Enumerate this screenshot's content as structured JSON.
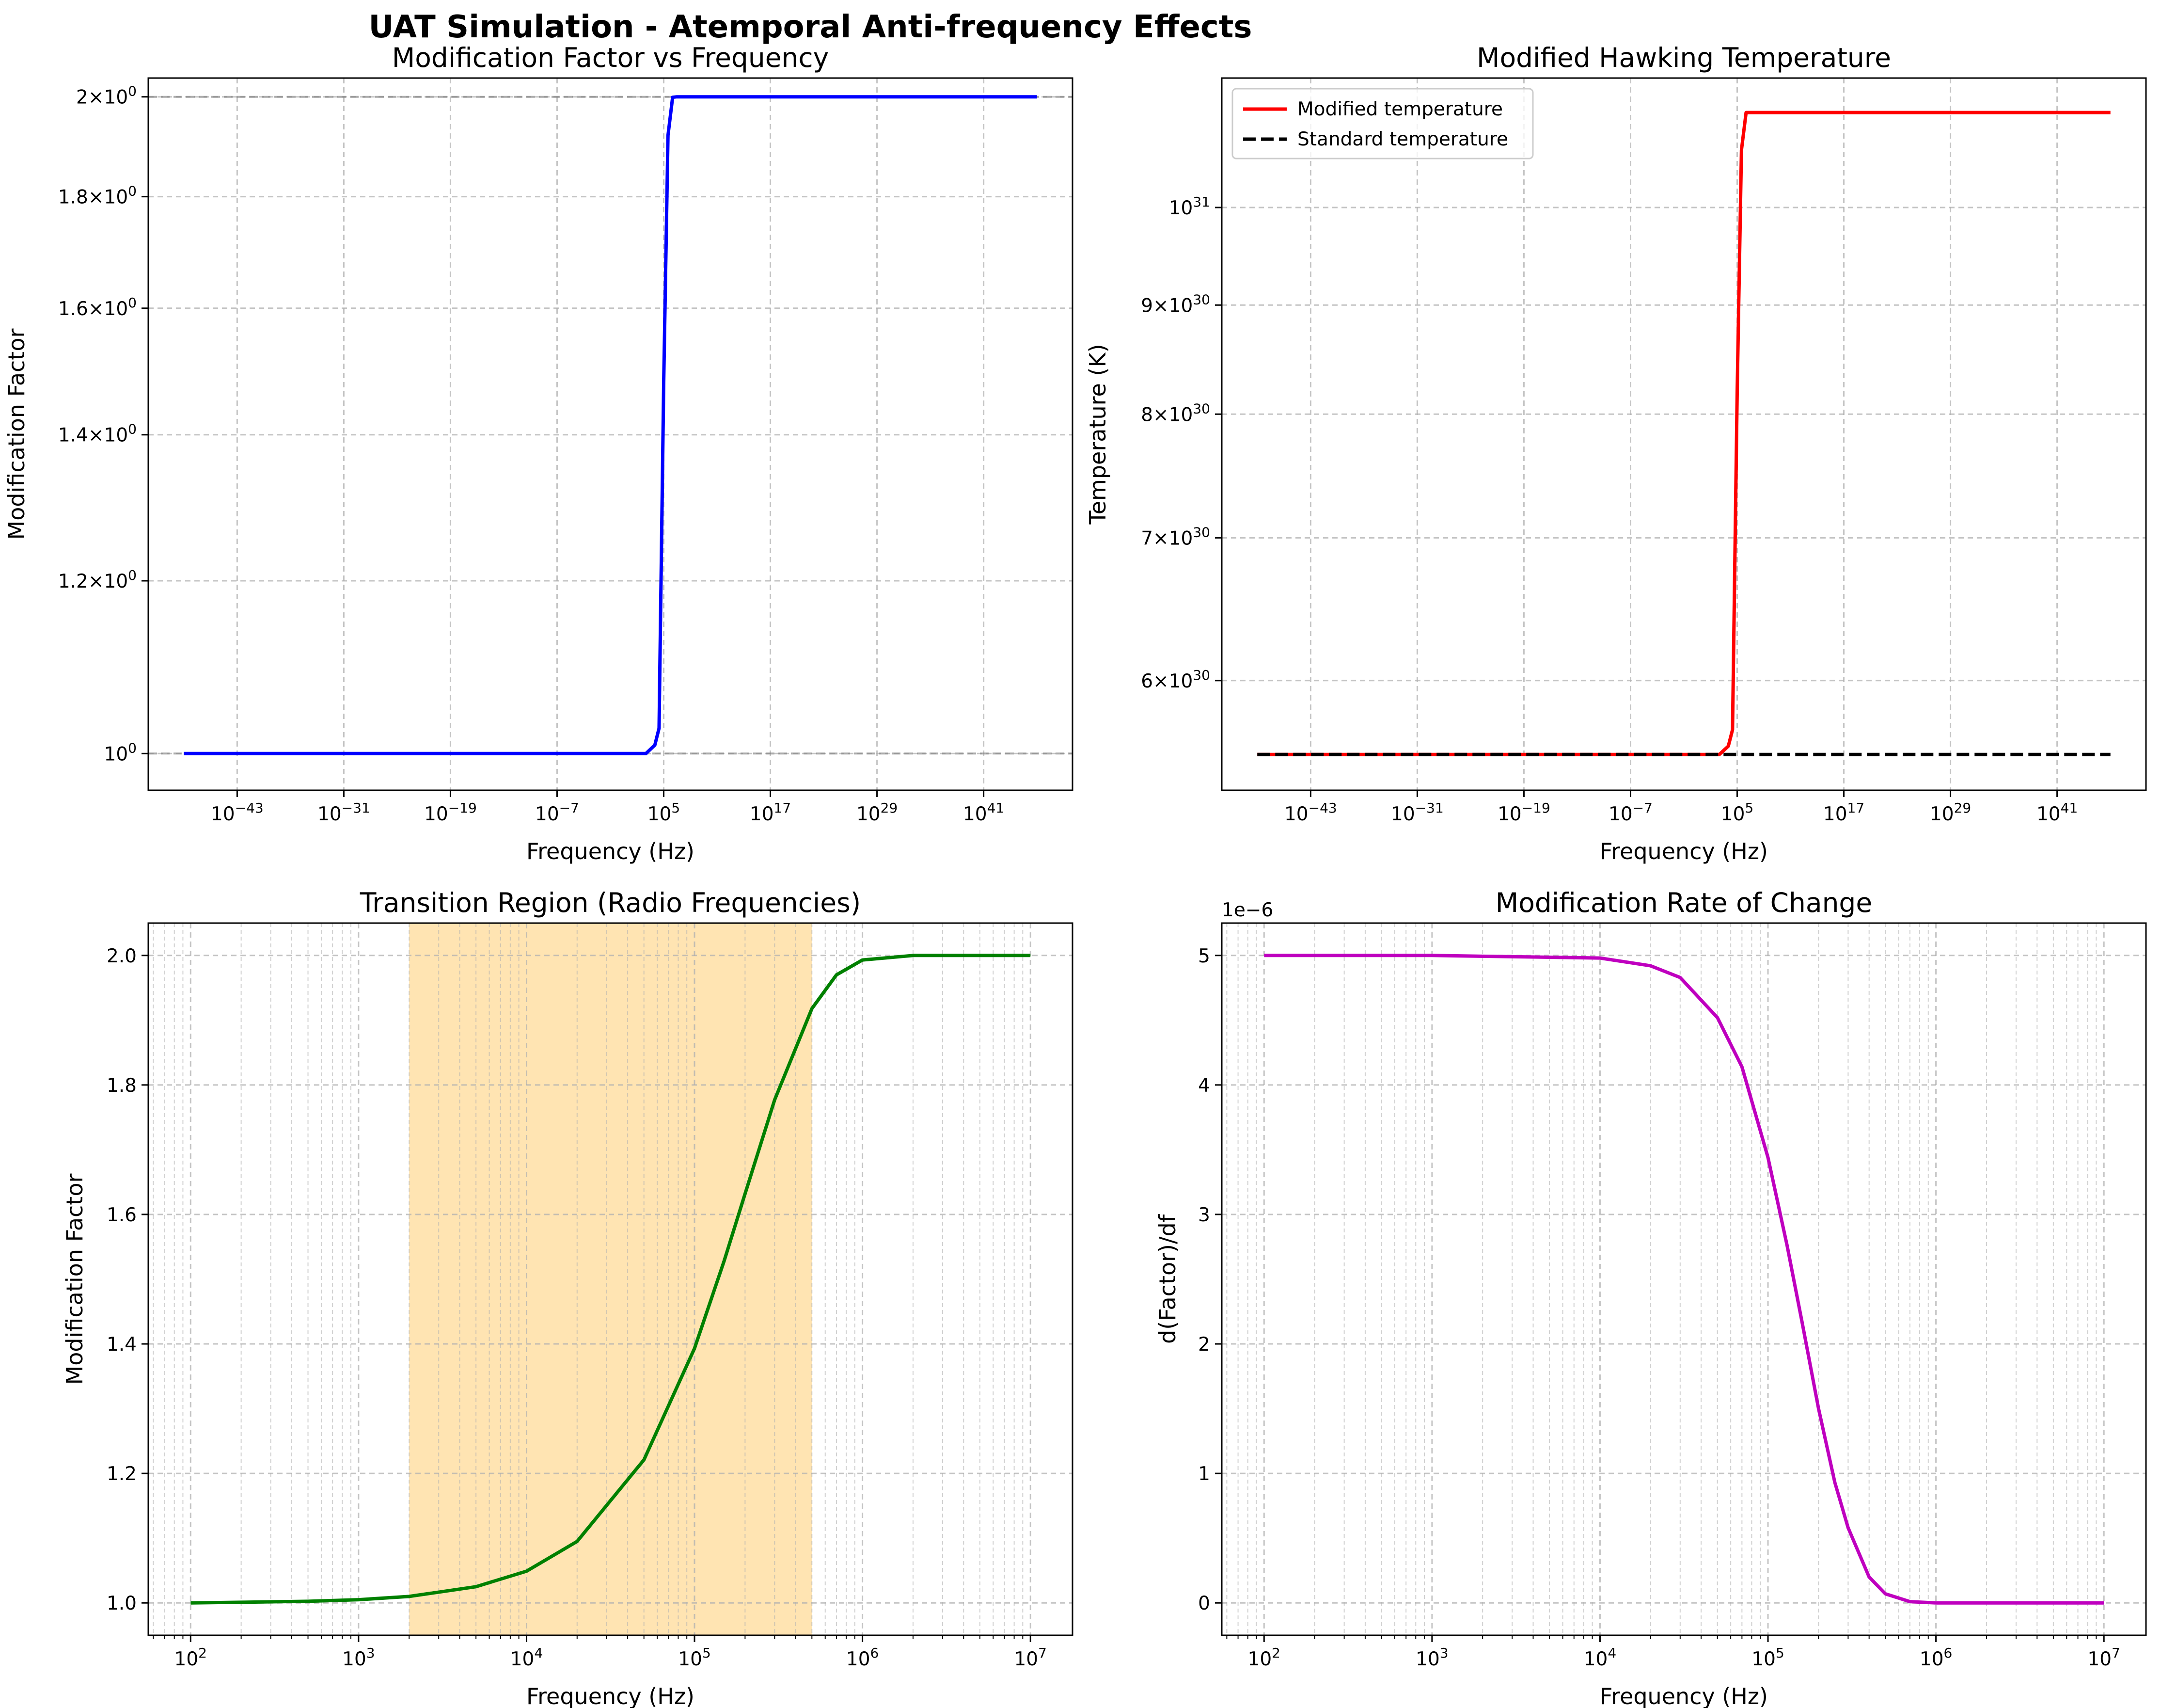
{
  "figure": {
    "title": "UAT Simulation - Atemporal Anti-frequency Effects"
  },
  "chart_data": [
    {
      "type": "line",
      "title": "Modification Factor vs Frequency",
      "xlabel": "Frequency (Hz)",
      "ylabel": "Modification Factor",
      "xscale": "log",
      "yscale": "log",
      "xlim": [
        1e-53,
        1e+51
      ],
      "ylim": [
        0.962,
        2.04
      ],
      "xticks": [
        "10^-43",
        "10^-31",
        "10^-19",
        "10^-7",
        "10^5",
        "10^17",
        "10^29",
        "10^41"
      ],
      "yticks": [
        "10^0",
        "1.2×10^0",
        "1.4×10^0",
        "1.6×10^0",
        "1.8×10^0",
        "2×10^0"
      ],
      "grid": true,
      "reference_lines": [
        1,
        2
      ],
      "reference_color": "#808080",
      "series": [
        {
          "color": "#0000ff",
          "x": [
            1e-49,
            1e-10,
            10.0,
            100.0,
            1000.0,
            10000.0,
            30000.0,
            100000.0,
            300000.0,
            1000000.0,
            3000000.0,
            10000000.0,
            100000000.0,
            1e+47
          ],
          "y": [
            1.0,
            1.0,
            1.0,
            1.0,
            1.0,
            1.009,
            1.027,
            1.48,
            1.92,
            1.999,
            2.0,
            2.0,
            2.0,
            2.0
          ]
        }
      ]
    },
    {
      "type": "line",
      "title": "Modified Hawking Temperature",
      "xlabel": "Frequency (Hz)",
      "ylabel": "Temperature (K)",
      "xscale": "log",
      "yscale": "log",
      "xlim": [
        1e-53,
        1e+51
      ],
      "ylim": [
        5.33e+30,
        1.15e+31
      ],
      "xticks": [
        "10^-43",
        "10^-31",
        "10^-19",
        "10^-7",
        "10^5",
        "10^17",
        "10^29",
        "10^41"
      ],
      "yticks": [
        "6×10^30",
        "7×10^30",
        "8×10^30",
        "9×10^30",
        "10^31"
      ],
      "grid": true,
      "legend_position": "upper-left",
      "series": [
        {
          "name": "Modified temperature",
          "color": "#ff0000",
          "dash": "solid",
          "x": [
            1e-49,
            1e-10,
            10.0,
            100.0,
            1000.0,
            10000.0,
            30000.0,
            100000.0,
            300000.0,
            1000000.0,
            3000000.0,
            10000000.0,
            100000000.0,
            1e+47
          ],
          "y": [
            5.54e+30,
            5.54e+30,
            5.54e+30,
            5.54e+30,
            5.54e+30,
            5.59e+30,
            5.69e+30,
            8.2e+30,
            1.064e+31,
            1.108e+31,
            1.108e+31,
            1.108e+31,
            1.108e+31,
            1.108e+31
          ]
        },
        {
          "name": "Standard temperature",
          "color": "#000000",
          "dash": "dashed",
          "x": [
            1e-49,
            1e+47
          ],
          "y": [
            5.54e+30,
            5.54e+30
          ]
        }
      ]
    },
    {
      "type": "line",
      "title": "Transition Region (Radio Frequencies)",
      "xlabel": "Frequency (Hz)",
      "ylabel": "Modification Factor",
      "xscale": "log",
      "yscale": "linear",
      "xlim": [
        56,
        17800000
      ],
      "ylim": [
        0.95,
        2.05
      ],
      "xticks": [
        "10^2",
        "10^3",
        "10^4",
        "10^5",
        "10^6",
        "10^7"
      ],
      "yticks": [
        1.0,
        1.2,
        1.4,
        1.6,
        1.8,
        2.0
      ],
      "grid": true,
      "shaded_band": {
        "x": [
          2000,
          500000
        ],
        "color": "#ffa500",
        "opacity": 0.3
      },
      "series": [
        {
          "color": "#008000",
          "x": [
            100,
            200,
            500,
            1000,
            2000,
            5000,
            10000,
            20000,
            50000,
            100000,
            150000,
            200000,
            300000,
            500000,
            700000,
            1000000,
            2000000,
            10000000
          ],
          "y": [
            1.0,
            1.001,
            1.0025,
            1.005,
            1.01,
            1.025,
            1.049,
            1.095,
            1.221,
            1.393,
            1.528,
            1.632,
            1.777,
            1.918,
            1.97,
            1.993,
            2.0,
            2.0
          ]
        }
      ]
    },
    {
      "type": "line",
      "title": "Modification Rate of Change",
      "xlabel": "Frequency (Hz)",
      "ylabel": "d(Factor)/df",
      "xscale": "log",
      "yscale": "linear",
      "xlim": [
        56,
        17800000
      ],
      "ylim": [
        -0.25,
        5.25
      ],
      "offset_text": "1e−6",
      "xticks": [
        "10^2",
        "10^3",
        "10^4",
        "10^5",
        "10^6",
        "10^7"
      ],
      "yticks": [
        0,
        1,
        2,
        3,
        4,
        5
      ],
      "grid": true,
      "series": [
        {
          "color": "#bf00bf",
          "x": [
            100,
            1000,
            10000,
            20000,
            30000,
            50000,
            70000,
            100000,
            130000,
            160000,
            200000,
            250000,
            300000,
            400000,
            500000,
            700000,
            1000000,
            2000000,
            10000000
          ],
          "y": [
            5.0,
            5.0,
            4.98,
            4.92,
            4.83,
            4.52,
            4.14,
            3.44,
            2.76,
            2.16,
            1.5,
            0.93,
            0.58,
            0.2,
            0.07,
            0.01,
            0.0,
            0.0,
            0.0
          ]
        }
      ]
    }
  ]
}
